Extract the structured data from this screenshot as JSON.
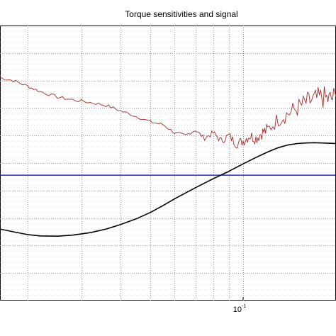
{
  "chart_data": {
    "type": "line",
    "title": "Torque sensitivities and signal",
    "xscale": "log",
    "xlim": [
      0.0163,
      0.2
    ],
    "ylim": [
      0,
      1
    ],
    "grid": true,
    "x_tick_labels": [
      {
        "value": 0.1,
        "base": "10",
        "exponent": "-1"
      }
    ],
    "series": [
      {
        "color": "#a52a2a",
        "style": "noisy",
        "x": [
          0.0163,
          0.018,
          0.02,
          0.022,
          0.025,
          0.028,
          0.032,
          0.036,
          0.04,
          0.045,
          0.05,
          0.055,
          0.06,
          0.065,
          0.07,
          0.075,
          0.08,
          0.085,
          0.09,
          0.095,
          0.1,
          0.105,
          0.11,
          0.115,
          0.12,
          0.13,
          0.14,
          0.15,
          0.16,
          0.17,
          0.18,
          0.19,
          0.2
        ],
        "y": [
          0.81,
          0.8,
          0.78,
          0.76,
          0.74,
          0.73,
          0.72,
          0.71,
          0.69,
          0.67,
          0.65,
          0.64,
          0.61,
          0.6,
          0.62,
          0.59,
          0.61,
          0.58,
          0.6,
          0.57,
          0.58,
          0.6,
          0.59,
          0.61,
          0.62,
          0.66,
          0.68,
          0.7,
          0.72,
          0.73,
          0.74,
          0.73,
          0.74
        ]
      },
      {
        "color": "#0000cc",
        "style": "flat",
        "x": [
          0.0163,
          0.2
        ],
        "y": [
          0.456,
          0.456
        ]
      },
      {
        "color": "#000000",
        "style": "smooth",
        "x": [
          0.0163,
          0.018,
          0.02,
          0.022,
          0.025,
          0.028,
          0.032,
          0.036,
          0.04,
          0.045,
          0.05,
          0.055,
          0.06,
          0.07,
          0.08,
          0.09,
          0.1,
          0.11,
          0.12,
          0.13,
          0.14,
          0.15,
          0.16,
          0.17,
          0.18,
          0.19,
          0.2
        ],
        "y": [
          0.26,
          0.25,
          0.24,
          0.235,
          0.234,
          0.238,
          0.247,
          0.26,
          0.276,
          0.297,
          0.32,
          0.345,
          0.37,
          0.41,
          0.443,
          0.47,
          0.497,
          0.52,
          0.54,
          0.556,
          0.566,
          0.571,
          0.573,
          0.574,
          0.573,
          0.572,
          0.571
        ]
      }
    ]
  }
}
